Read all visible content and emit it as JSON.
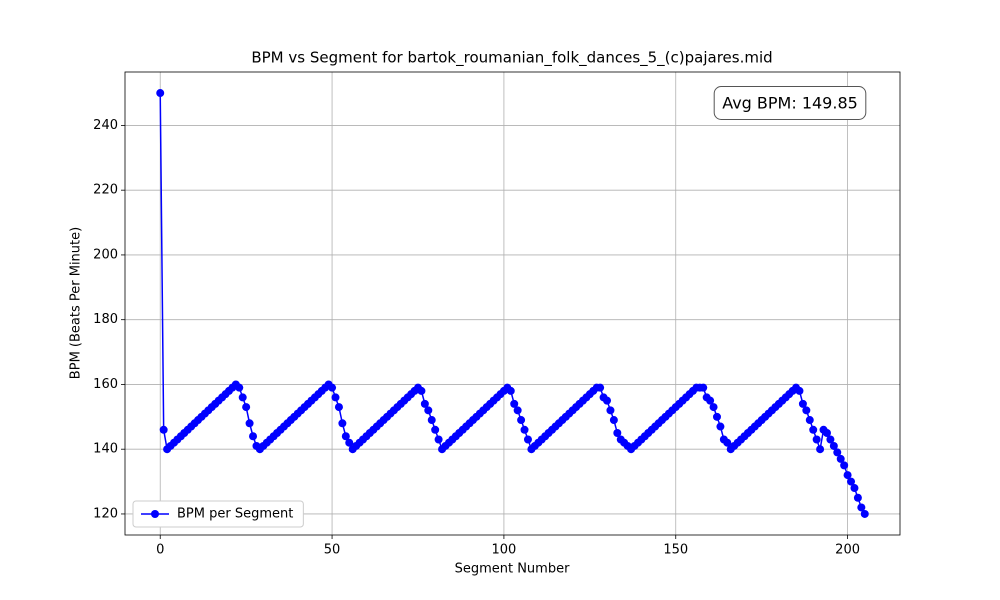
{
  "chart_data": {
    "type": "line",
    "title": "BPM vs Segment for bartok_roumanian_folk_dances_5_(c)pajares.mid",
    "xlabel": "Segment Number",
    "ylabel": "BPM (Beats Per Minute)",
    "annotation": "Avg BPM: 149.85",
    "legend": "lower left",
    "grid": true,
    "xlim": [
      -10.25,
      215.25
    ],
    "ylim": [
      113.5,
      256.5
    ],
    "xticks": [
      0,
      50,
      100,
      150,
      200
    ],
    "yticks": [
      120,
      140,
      160,
      180,
      200,
      220,
      240
    ],
    "x": [
      0,
      1,
      2,
      3,
      4,
      5,
      6,
      7,
      8,
      9,
      10,
      11,
      12,
      13,
      14,
      15,
      16,
      17,
      18,
      19,
      20,
      21,
      22,
      23,
      24,
      25,
      26,
      27,
      28,
      29,
      30,
      31,
      32,
      33,
      34,
      35,
      36,
      37,
      38,
      39,
      40,
      41,
      42,
      43,
      44,
      45,
      46,
      47,
      48,
      49,
      50,
      51,
      52,
      53,
      54,
      55,
      56,
      57,
      58,
      59,
      60,
      61,
      62,
      63,
      64,
      65,
      66,
      67,
      68,
      69,
      70,
      71,
      72,
      73,
      74,
      75,
      76,
      77,
      78,
      79,
      80,
      81,
      82,
      83,
      84,
      85,
      86,
      87,
      88,
      89,
      90,
      91,
      92,
      93,
      94,
      95,
      96,
      97,
      98,
      99,
      100,
      101,
      102,
      103,
      104,
      105,
      106,
      107,
      108,
      109,
      110,
      111,
      112,
      113,
      114,
      115,
      116,
      117,
      118,
      119,
      120,
      121,
      122,
      123,
      124,
      125,
      126,
      127,
      128,
      129,
      130,
      131,
      132,
      133,
      134,
      135,
      136,
      137,
      138,
      139,
      140,
      141,
      142,
      143,
      144,
      145,
      146,
      147,
      148,
      149,
      150,
      151,
      152,
      153,
      154,
      155,
      156,
      157,
      158,
      159,
      160,
      161,
      162,
      163,
      164,
      165,
      166,
      167,
      168,
      169,
      170,
      171,
      172,
      173,
      174,
      175,
      176,
      177,
      178,
      179,
      180,
      181,
      182,
      183,
      184,
      185,
      186,
      187,
      188,
      189,
      190,
      191,
      192,
      193,
      194,
      195,
      196,
      197,
      198,
      199,
      200,
      201,
      202,
      203,
      204,
      205
    ],
    "series": [
      {
        "name": "BPM per Segment",
        "color": "#0000ff",
        "values": [
          250,
          146,
          140,
          141,
          142,
          143,
          144,
          145,
          146,
          147,
          148,
          149,
          150,
          151,
          152,
          153,
          154,
          155,
          156,
          157,
          158,
          159,
          160,
          159,
          156,
          153,
          148,
          144,
          141,
          140,
          141,
          142,
          143,
          144,
          145,
          146,
          147,
          148,
          149,
          150,
          151,
          152,
          153,
          154,
          155,
          156,
          157,
          158,
          159,
          160,
          159,
          156,
          153,
          148,
          144,
          142,
          140,
          141,
          142,
          143,
          144,
          145,
          146,
          147,
          148,
          149,
          150,
          151,
          152,
          153,
          154,
          155,
          156,
          157,
          158,
          159,
          158,
          154,
          152,
          149,
          146,
          143,
          140,
          141,
          142,
          143,
          144,
          145,
          146,
          147,
          148,
          149,
          150,
          151,
          152,
          153,
          154,
          155,
          156,
          157,
          158,
          159,
          158,
          154,
          152,
          149,
          146,
          143,
          140,
          141,
          142,
          143,
          144,
          145,
          146,
          147,
          148,
          149,
          150,
          151,
          152,
          153,
          154,
          155,
          156,
          157,
          158,
          159,
          159,
          156,
          155,
          152,
          149,
          145,
          143,
          142,
          141,
          140,
          141,
          142,
          143,
          144,
          145,
          146,
          147,
          148,
          149,
          150,
          151,
          152,
          153,
          154,
          155,
          156,
          157,
          158,
          159,
          159,
          159,
          156,
          155,
          153,
          150,
          147,
          143,
          142,
          140,
          141,
          142,
          143,
          144,
          145,
          146,
          147,
          148,
          149,
          150,
          151,
          152,
          153,
          154,
          155,
          156,
          157,
          158,
          159,
          158,
          154,
          152,
          149,
          146,
          143,
          140,
          146,
          145,
          143,
          141,
          139,
          137,
          135,
          132,
          130,
          128,
          125,
          122,
          120
        ]
      }
    ]
  }
}
